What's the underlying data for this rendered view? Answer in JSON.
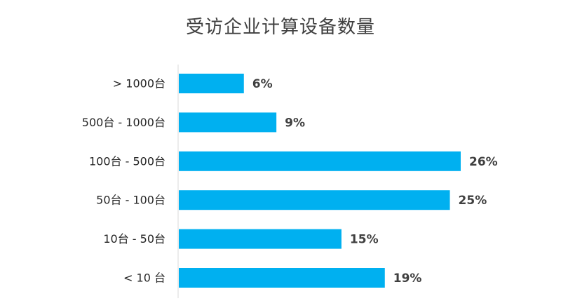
{
  "chart_data": {
    "type": "bar",
    "orientation": "horizontal",
    "title": "受访企业计算设备数量",
    "categories": [
      "> 1000台",
      "500台 - 1000台",
      "100台 - 500台",
      "50台 - 100台",
      "10台 - 50台",
      "< 10 台"
    ],
    "values": [
      6,
      9,
      26,
      25,
      15,
      19
    ],
    "value_labels": [
      "6%",
      "9%",
      "26%",
      "25%",
      "15%",
      "19%"
    ],
    "xlim": [
      0,
      26
    ],
    "grid": false,
    "legend": "none",
    "colors": {
      "bar": "#00B0F0",
      "axis": "#d9d9d9"
    }
  }
}
